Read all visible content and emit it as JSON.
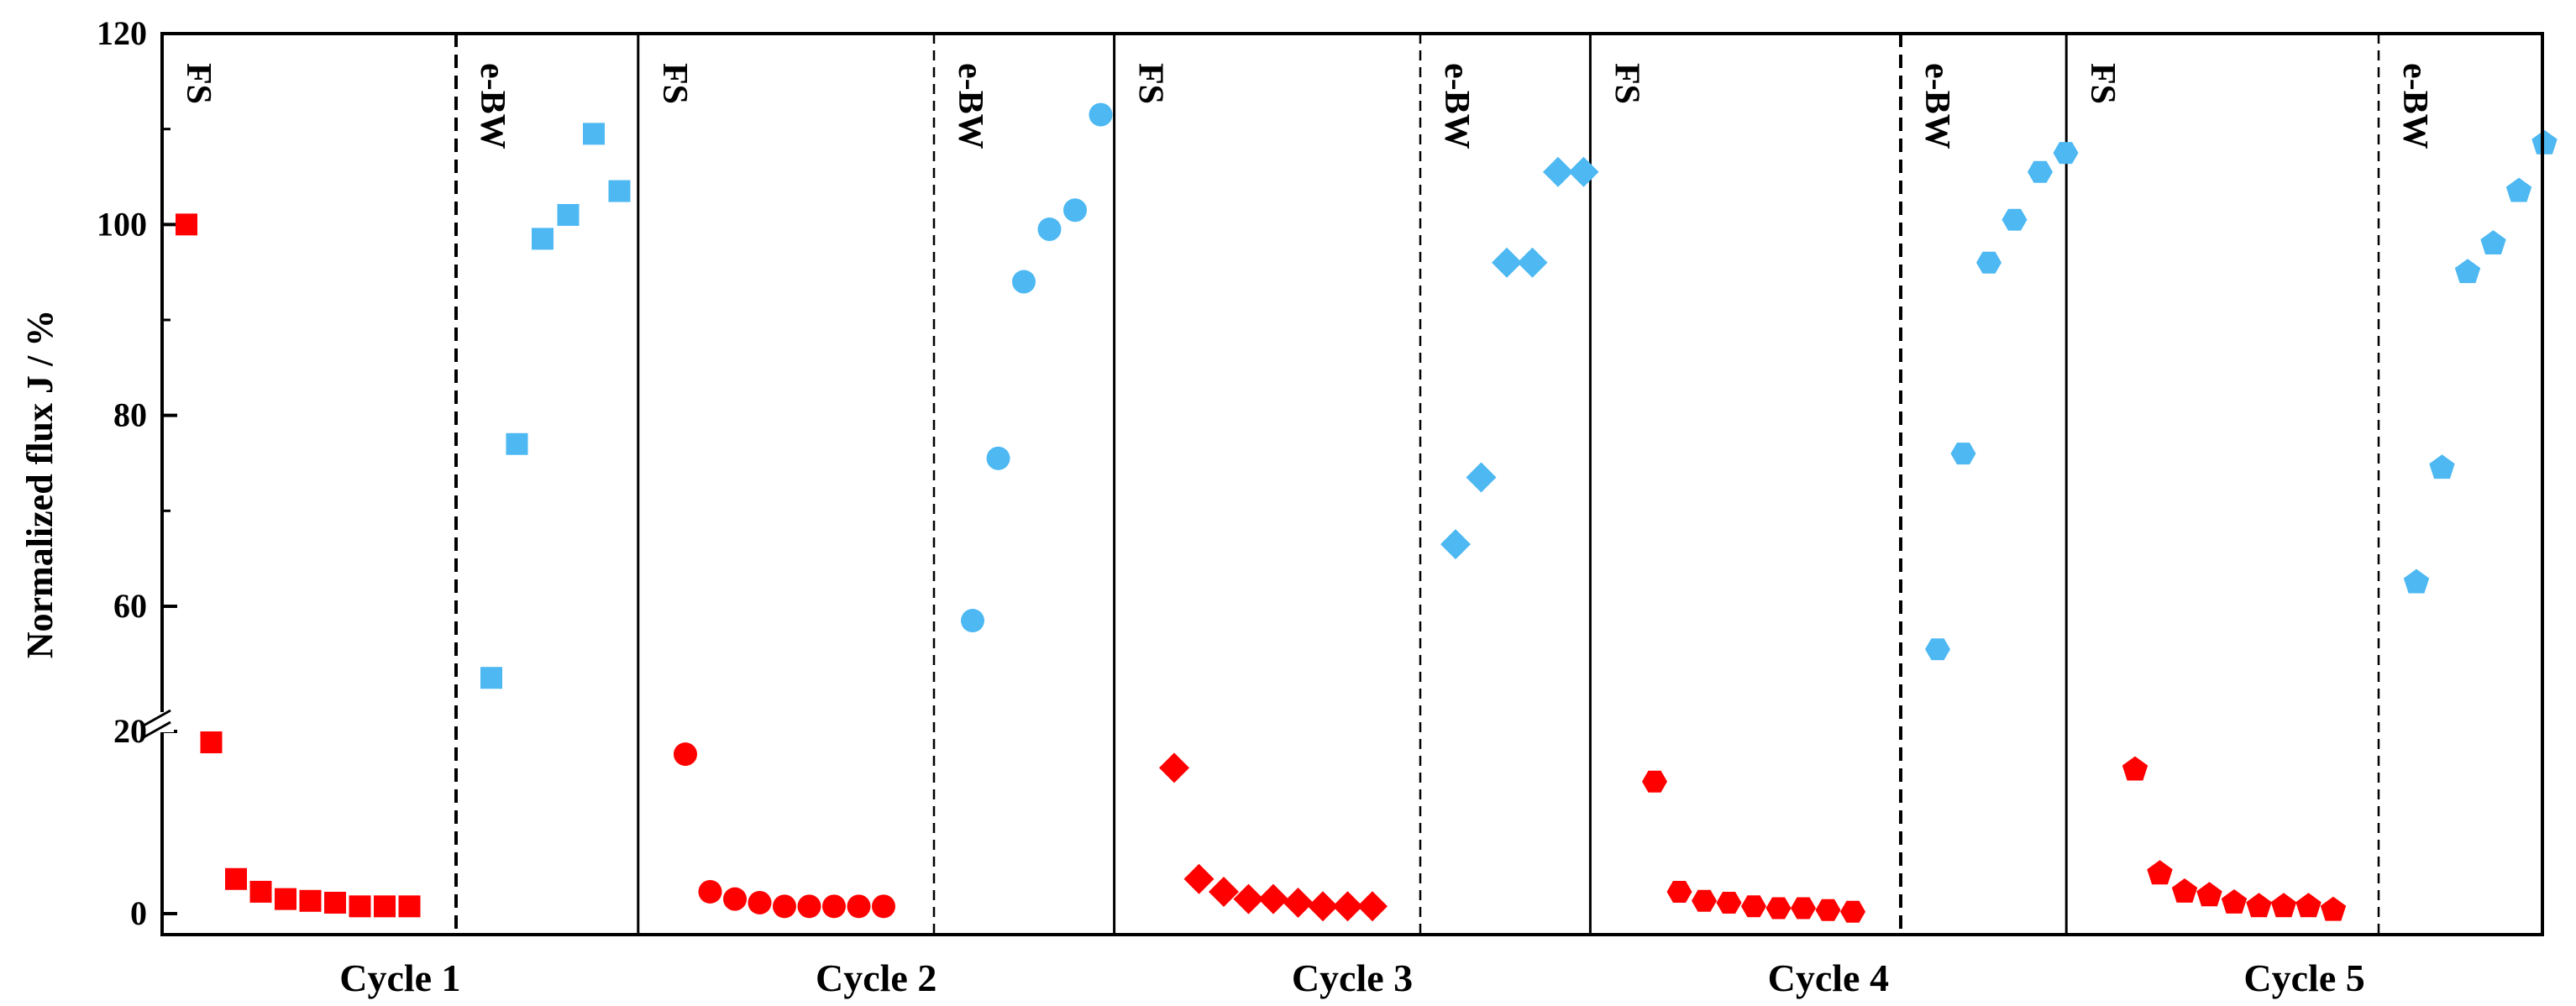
{
  "chart_data": {
    "type": "scatter",
    "title": "",
    "ylabel": "Normalized flux J / %",
    "xlabel": "",
    "y_axis": {
      "broken": true,
      "lower_range": [
        0,
        20
      ],
      "upper_range": [
        50,
        120
      ],
      "tick_labels": [
        "0",
        "20",
        "60",
        "80",
        "100",
        "120"
      ],
      "tick_values": [
        0,
        20,
        60,
        80,
        100,
        120
      ]
    },
    "colors": {
      "FS": "#ff0000",
      "e-BW": "#4db8f2"
    },
    "cycles": [
      {
        "label": "Cycle 1",
        "marker": "square",
        "FS_label": "FS",
        "eBW_label": "e-BW",
        "FS": [
          100,
          18.8,
          3.8,
          2.4,
          1.6,
          1.4,
          1.2,
          0.8,
          0.8,
          0.8
        ],
        "eBW": [
          52.5,
          77.0,
          98.5,
          101.0,
          109.5,
          103.5
        ]
      },
      {
        "label": "Cycle 2",
        "marker": "circle",
        "FS_label": "FS",
        "eBW_label": "e-BW",
        "FS": [
          17.5,
          2.4,
          1.6,
          1.2,
          0.8,
          0.8,
          0.8,
          0.8,
          0.8
        ],
        "eBW": [
          58.5,
          75.5,
          94.0,
          99.5,
          101.5,
          111.5
        ]
      },
      {
        "label": "Cycle 3",
        "marker": "diamond",
        "FS_label": "FS",
        "eBW_label": "e-BW",
        "FS": [
          16.0,
          3.8,
          2.4,
          1.6,
          1.6,
          1.2,
          0.8,
          0.8,
          0.8
        ],
        "eBW": [
          66.5,
          73.5,
          96.0,
          96.0,
          105.5,
          105.5
        ]
      },
      {
        "label": "Cycle 4",
        "marker": "hexagon",
        "FS_label": "FS",
        "eBW_label": "e-BW",
        "FS": [
          14.5,
          2.4,
          1.4,
          1.2,
          0.8,
          0.6,
          0.6,
          0.4,
          0.2
        ],
        "eBW": [
          55.5,
          76.0,
          96.0,
          100.5,
          105.5,
          107.5
        ]
      },
      {
        "label": "Cycle 5",
        "marker": "pentagon",
        "FS_label": "FS",
        "eBW_label": "e-BW",
        "FS": [
          15.8,
          4.4,
          2.4,
          2.0,
          1.2,
          0.8,
          0.8,
          0.8,
          0.4
        ],
        "eBW": [
          62.5,
          74.5,
          95.0,
          98.0,
          103.5,
          108.5
        ]
      }
    ]
  }
}
